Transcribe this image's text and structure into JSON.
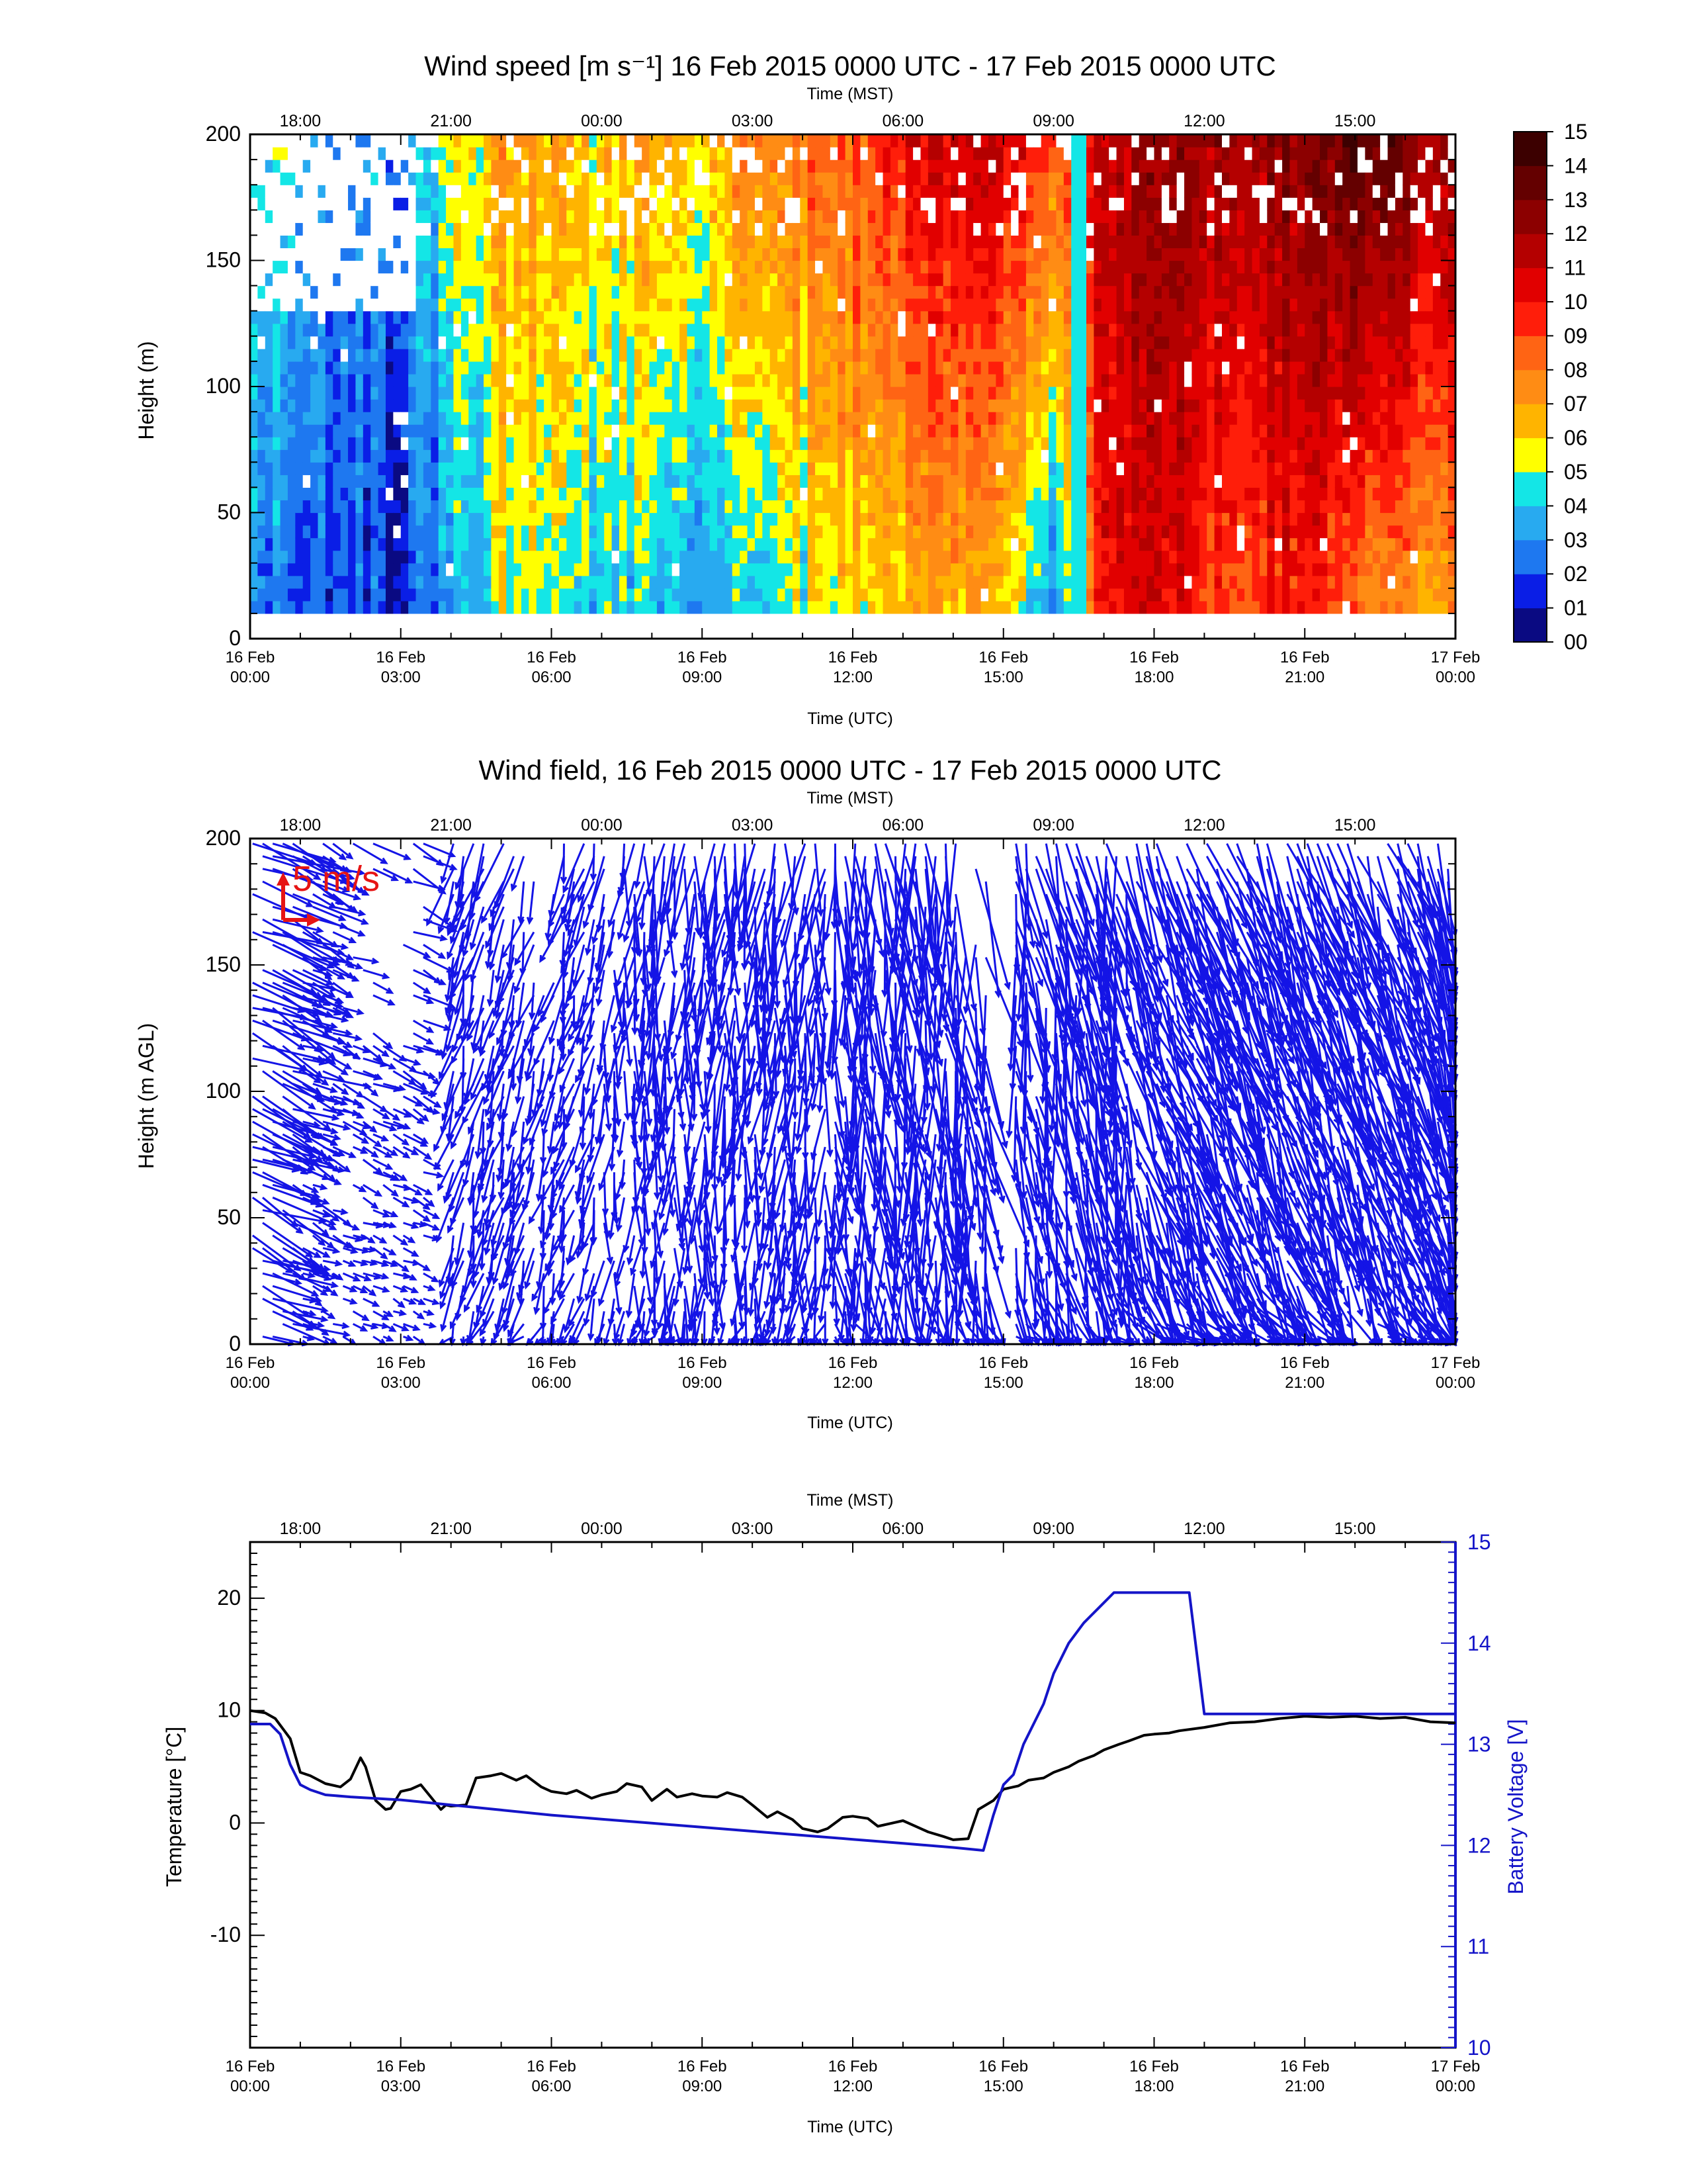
{
  "chart_data": [
    {
      "type": "heatmap",
      "title": "Wind speed [m s⁻¹] 16 Feb 2015 0000 UTC - 17 Feb 2015 0000 UTC",
      "xlabel": "Time (UTC)",
      "x2label": "Time (MST)",
      "ylabel": "Height (m)",
      "xlim_hours": [
        0,
        24
      ],
      "ylim": [
        0,
        200
      ],
      "y_ticks": [
        "0",
        "50",
        "100",
        "150",
        "200"
      ],
      "x_ticks": [
        [
          "16 Feb",
          "00:00"
        ],
        [
          "16 Feb",
          "03:00"
        ],
        [
          "16 Feb",
          "06:00"
        ],
        [
          "16 Feb",
          "09:00"
        ],
        [
          "16 Feb",
          "12:00"
        ],
        [
          "16 Feb",
          "15:00"
        ],
        [
          "16 Feb",
          "18:00"
        ],
        [
          "16 Feb",
          "21:00"
        ],
        [
          "17 Feb",
          "00:00"
        ]
      ],
      "x2_ticks": [
        "18:00",
        "21:00",
        "00:00",
        "03:00",
        "06:00",
        "09:00",
        "12:00",
        "15:00"
      ],
      "colorbar": {
        "labels": [
          "00",
          "01",
          "02",
          "03",
          "04",
          "05",
          "06",
          "07",
          "08",
          "09",
          "10",
          "11",
          "12",
          "13",
          "14",
          "15"
        ],
        "colors": [
          "#0a0a82",
          "#0a1ee6",
          "#1e78f0",
          "#28aaf0",
          "#14e6e6",
          "#ffff00",
          "#ffb400",
          "#ff8c14",
          "#ff6414",
          "#ff1e0a",
          "#e10000",
          "#b40000",
          "#8c0000",
          "#640000",
          "#3c0000"
        ]
      },
      "height_range_m": [
        10,
        200
      ],
      "time_columns_hours": [
        0,
        1,
        2,
        3,
        4,
        5,
        6,
        7,
        8,
        9,
        10,
        11,
        12,
        13,
        14,
        15,
        16,
        17,
        18,
        19,
        20,
        21,
        22,
        23,
        24
      ],
      "speed_by_hour_low_high": [
        [
          3,
          5
        ],
        [
          2,
          4
        ],
        [
          2,
          3
        ],
        [
          1,
          3
        ],
        [
          3,
          5
        ],
        [
          5,
          7
        ],
        [
          5,
          7
        ],
        [
          4,
          6
        ],
        [
          4,
          7
        ],
        [
          3,
          6
        ],
        [
          4,
          8
        ],
        [
          5,
          8
        ],
        [
          6,
          9
        ],
        [
          6,
          10
        ],
        [
          7,
          11
        ],
        [
          6,
          11
        ],
        [
          3,
          9
        ],
        [
          10,
          11
        ],
        [
          11,
          13
        ],
        [
          9,
          12
        ],
        [
          9,
          12
        ],
        [
          10,
          13
        ],
        [
          8,
          14
        ],
        [
          7,
          13
        ],
        [
          7,
          12
        ]
      ]
    },
    {
      "type": "vector",
      "title": "Wind field, 16 Feb 2015 0000 UTC - 17 Feb 2015 0000 UTC",
      "xlabel": "Time (UTC)",
      "x2label": "Time (MST)",
      "ylabel": "Height (m AGL)",
      "xlim_hours": [
        0,
        24
      ],
      "ylim": [
        0,
        200
      ],
      "y_ticks": [
        "0",
        "50",
        "100",
        "150",
        "200"
      ],
      "x_ticks": [
        [
          "16 Feb",
          "00:00"
        ],
        [
          "16 Feb",
          "03:00"
        ],
        [
          "16 Feb",
          "06:00"
        ],
        [
          "16 Feb",
          "09:00"
        ],
        [
          "16 Feb",
          "12:00"
        ],
        [
          "16 Feb",
          "15:00"
        ],
        [
          "16 Feb",
          "18:00"
        ],
        [
          "16 Feb",
          "21:00"
        ],
        [
          "17 Feb",
          "00:00"
        ]
      ],
      "x2_ticks": [
        "18:00",
        "21:00",
        "00:00",
        "03:00",
        "06:00",
        "09:00",
        "12:00",
        "15:00"
      ],
      "scale_label": "5 m/s",
      "vector_color": "#1414e6",
      "scale_color": "#e61414"
    },
    {
      "type": "line",
      "xlabel": "Time (UTC)",
      "x2label": "Time (MST)",
      "ylabel": "Temperature [°C]",
      "y2label": "Battery Voltage [V]",
      "xlim_hours": [
        0,
        24
      ],
      "ylim": [
        -20,
        25
      ],
      "y2lim": [
        10,
        15
      ],
      "y_ticks": [
        "-10",
        "0",
        "10",
        "20"
      ],
      "y2_ticks": [
        "10",
        "11",
        "12",
        "13",
        "14",
        "15"
      ],
      "x_ticks": [
        [
          "16 Feb",
          "00:00"
        ],
        [
          "16 Feb",
          "03:00"
        ],
        [
          "16 Feb",
          "06:00"
        ],
        [
          "16 Feb",
          "09:00"
        ],
        [
          "16 Feb",
          "12:00"
        ],
        [
          "16 Feb",
          "15:00"
        ],
        [
          "16 Feb",
          "18:00"
        ],
        [
          "16 Feb",
          "21:00"
        ],
        [
          "17 Feb",
          "00:00"
        ]
      ],
      "x2_ticks": [
        "18:00",
        "21:00",
        "00:00",
        "03:00",
        "06:00",
        "09:00",
        "12:00",
        "15:00"
      ],
      "series": [
        {
          "color": "#000000",
          "x": [
            0,
            0.3,
            0.5,
            0.8,
            1.0,
            1.2,
            1.5,
            1.8,
            2.0,
            2.2,
            2.3,
            2.5,
            2.7,
            2.8,
            3.0,
            3.2,
            3.4,
            3.6,
            3.8,
            3.9,
            4.0,
            4.3,
            4.5,
            4.8,
            5.0,
            5.3,
            5.5,
            5.8,
            6.0,
            6.3,
            6.5,
            6.8,
            7.0,
            7.3,
            7.5,
            7.8,
            8.0,
            8.3,
            8.5,
            8.8,
            9.0,
            9.3,
            9.5,
            9.8,
            10.0,
            10.3,
            10.5,
            10.8,
            11.0,
            11.3,
            11.5,
            11.8,
            12.0,
            12.3,
            12.5,
            12.8,
            13.0,
            13.3,
            13.5,
            13.8,
            14.0,
            14.3,
            14.5,
            14.8,
            15.0,
            15.3,
            15.5,
            15.8,
            16.0,
            16.3,
            16.5,
            16.8,
            17.0,
            17.3,
            17.5,
            17.8,
            18.0,
            18.3,
            18.5,
            19.0,
            19.5,
            20.0,
            20.5,
            21.0,
            21.5,
            22.0,
            22.5,
            23.0,
            23.5,
            24.0
          ],
          "values": [
            10.0,
            9.8,
            9.3,
            7.5,
            4.5,
            4.2,
            3.5,
            3.2,
            3.9,
            5.8,
            5.0,
            2.0,
            1.2,
            1.3,
            2.8,
            3.0,
            3.4,
            2.3,
            1.2,
            1.6,
            1.5,
            1.6,
            4.0,
            4.2,
            4.4,
            3.8,
            4.2,
            3.2,
            2.8,
            2.6,
            2.9,
            2.2,
            2.5,
            2.8,
            3.5,
            3.2,
            2.0,
            3.0,
            2.3,
            2.6,
            2.4,
            2.3,
            2.7,
            2.3,
            1.6,
            0.5,
            1.0,
            0.3,
            -0.5,
            -0.8,
            -0.5,
            0.5,
            0.6,
            0.4,
            -0.3,
            0.0,
            0.2,
            -0.4,
            -0.8,
            -1.2,
            -1.5,
            -1.4,
            1.2,
            2.0,
            3.0,
            3.3,
            3.8,
            4.0,
            4.5,
            5.0,
            5.5,
            6.0,
            6.5,
            7.0,
            7.3,
            7.8,
            7.9,
            8.0,
            8.2,
            8.5,
            8.9,
            9.0,
            9.3,
            9.5,
            9.4,
            9.5,
            9.3,
            9.4,
            9.0,
            8.9
          ]
        },
        {
          "color": "#1414c8",
          "axis": "right",
          "x": [
            0,
            0.4,
            0.6,
            0.8,
            1.0,
            1.2,
            1.5,
            2.0,
            3.0,
            4.0,
            5.0,
            6.0,
            7.0,
            8.0,
            9.0,
            10.0,
            11.0,
            12.0,
            13.0,
            14.0,
            14.6,
            14.8,
            15.0,
            15.2,
            15.4,
            15.6,
            15.8,
            16.0,
            16.3,
            16.6,
            16.9,
            17.2,
            17.5,
            17.8,
            18.2,
            18.5,
            18.7,
            19.0,
            20.0,
            21.0,
            22.0,
            23.0,
            24.0
          ],
          "values": [
            13.2,
            13.2,
            13.1,
            12.8,
            12.6,
            12.55,
            12.5,
            12.48,
            12.45,
            12.4,
            12.35,
            12.3,
            12.26,
            12.22,
            12.18,
            12.14,
            12.1,
            12.06,
            12.02,
            11.98,
            11.95,
            12.3,
            12.6,
            12.7,
            13.0,
            13.2,
            13.4,
            13.7,
            14.0,
            14.2,
            14.35,
            14.5,
            14.5,
            14.5,
            14.5,
            14.5,
            14.5,
            13.3,
            13.3,
            13.3,
            13.3,
            13.3,
            13.3
          ]
        }
      ]
    }
  ]
}
